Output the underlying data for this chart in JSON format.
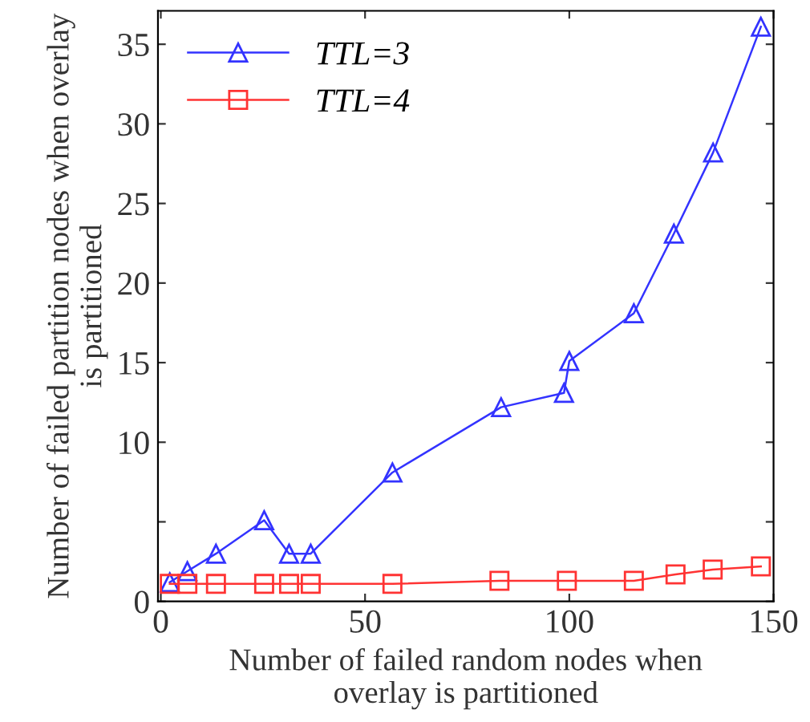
{
  "chart_data": {
    "type": "line",
    "xlabel": "Number of failed random nodes when\noverlay is partitioned",
    "ylabel": "Number of failed partition nodes when overlay\nis partitioned",
    "xlim": [
      -0.7,
      150
    ],
    "xticks": [
      0,
      50,
      100,
      150
    ],
    "ylim": [
      0,
      37.1
    ],
    "yticks": [
      0,
      {
        "value": 5,
        "label": null
      },
      10,
      15,
      20,
      25,
      30,
      35
    ],
    "grid": false,
    "legend": "top left",
    "line_style": "solid",
    "series": [
      {
        "name": "TTL=3",
        "color": "#3333ff",
        "marker": "triangle",
        "x": [
          2.2,
          6.5,
          13.5,
          25.3,
          31.4,
          36.7,
          56.7,
          83.3,
          98.7,
          100,
          115.8,
          125.6,
          135.2,
          146.9
        ],
        "values": [
          1.2,
          1.9,
          3.0,
          5.1,
          3.0,
          3.0,
          8.1,
          12.2,
          13.1,
          15.1,
          18.1,
          23.1,
          28.2,
          36.1
        ]
      },
      {
        "name": "TTL=4",
        "color": "#ff3333",
        "marker": "square",
        "x": [
          2.2,
          6.5,
          13.5,
          25.3,
          31.4,
          36.7,
          56.7,
          82.9,
          99.4,
          115.8,
          126,
          135.1,
          146.9
        ],
        "values": [
          1.1,
          1.1,
          1.1,
          1.1,
          1.1,
          1.1,
          1.1,
          1.3,
          1.3,
          1.3,
          1.7,
          2.0,
          2.2
        ]
      }
    ]
  }
}
